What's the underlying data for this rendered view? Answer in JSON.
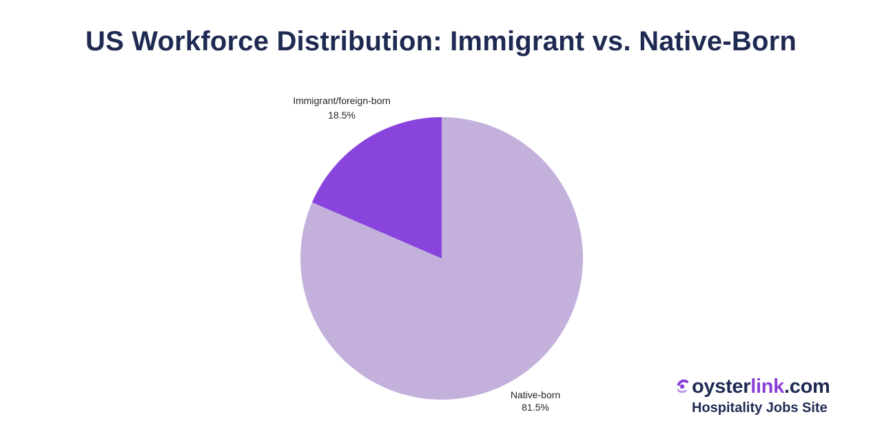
{
  "chart_data": {
    "type": "pie",
    "title": "US Workforce Distribution: Immigrant vs. Native-Born",
    "slices": [
      {
        "label": "Native-born",
        "value": 81.5,
        "display": "81.5%",
        "color": "#c3b1dc"
      },
      {
        "label": "Immigrant/foreign-born",
        "value": 18.5,
        "display": "18.5%",
        "color": "#8844dd"
      }
    ],
    "start_angle_deg": 0,
    "direction": "clockwise"
  },
  "brand": {
    "name_part1": "oyster",
    "name_part2": "link",
    "name_part3": ".com",
    "tagline": "Hospitality Jobs Site",
    "icon": "oyster-logo-icon",
    "accent_color": "#8a3fd6",
    "text_color": "#1f2a52"
  }
}
